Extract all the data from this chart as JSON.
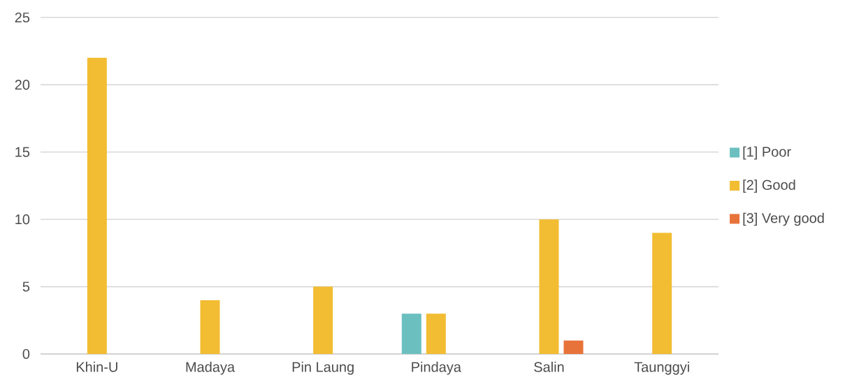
{
  "chart_data": {
    "type": "bar",
    "categories": [
      "Khin-U",
      "Madaya",
      "Pin Laung",
      "Pindaya",
      "Salin",
      "Taunggyi"
    ],
    "series": [
      {
        "name": "[1] Poor",
        "color": "#6cbfbf",
        "values": [
          null,
          null,
          null,
          3,
          null,
          null
        ]
      },
      {
        "name": "[2] Good",
        "color": "#f2bd33",
        "values": [
          22,
          4,
          5,
          3,
          10,
          9
        ]
      },
      {
        "name": "[3] Very good",
        "color": "#e8733a",
        "values": [
          null,
          null,
          null,
          null,
          1,
          null
        ]
      }
    ],
    "ylim": [
      0,
      25
    ],
    "yticks": [
      0,
      5,
      10,
      15,
      20,
      25
    ],
    "grid": "y",
    "legend": "right"
  }
}
